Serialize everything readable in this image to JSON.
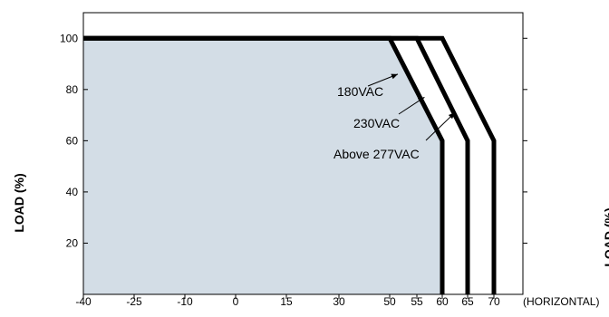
{
  "chart_data": {
    "type": "line",
    "title": "",
    "xlabel": "(HORIZONTAL)",
    "ylabel": "LOAD (%)",
    "right_ylabel_fragment": "LOAD (%)",
    "xlim": [
      -40,
      70
    ],
    "ylim": [
      0,
      110
    ],
    "x_ticks": [
      -40,
      -25,
      -10,
      0,
      15,
      30,
      50,
      55,
      60,
      65,
      70
    ],
    "x_tick_labels": [
      "-40",
      "-25",
      "-10",
      "0",
      "15",
      "30",
      "50",
      "55",
      "60",
      "65",
      "70"
    ],
    "y_ticks": [
      20,
      40,
      60,
      80,
      100
    ],
    "y_tick_labels": [
      "20",
      "40",
      "60",
      "80",
      "100"
    ],
    "shaded_region_series": 0,
    "series": [
      {
        "name": "180VAC",
        "x": [
          -40,
          50,
          60,
          60
        ],
        "y": [
          100,
          100,
          60,
          0
        ]
      },
      {
        "name": "230VAC",
        "x": [
          -40,
          55,
          65,
          65
        ],
        "y": [
          100,
          100,
          60,
          0
        ]
      },
      {
        "name": "Above 277VAC",
        "x": [
          -40,
          60,
          70,
          70
        ],
        "y": [
          100,
          100,
          60,
          0
        ]
      }
    ],
    "annotations": [
      {
        "text": "180VAC",
        "series": 0,
        "arrow_to": [
          51.5,
          86
        ]
      },
      {
        "text": "230VAC",
        "series": 1,
        "arrow_to": [
          56.5,
          77
        ]
      },
      {
        "text": "Above 277VAC",
        "series": 2,
        "arrow_to": [
          62.5,
          71
        ]
      }
    ],
    "colors": {
      "line": "#000000",
      "shade": "#d3dde6",
      "axis": "#000000"
    }
  }
}
